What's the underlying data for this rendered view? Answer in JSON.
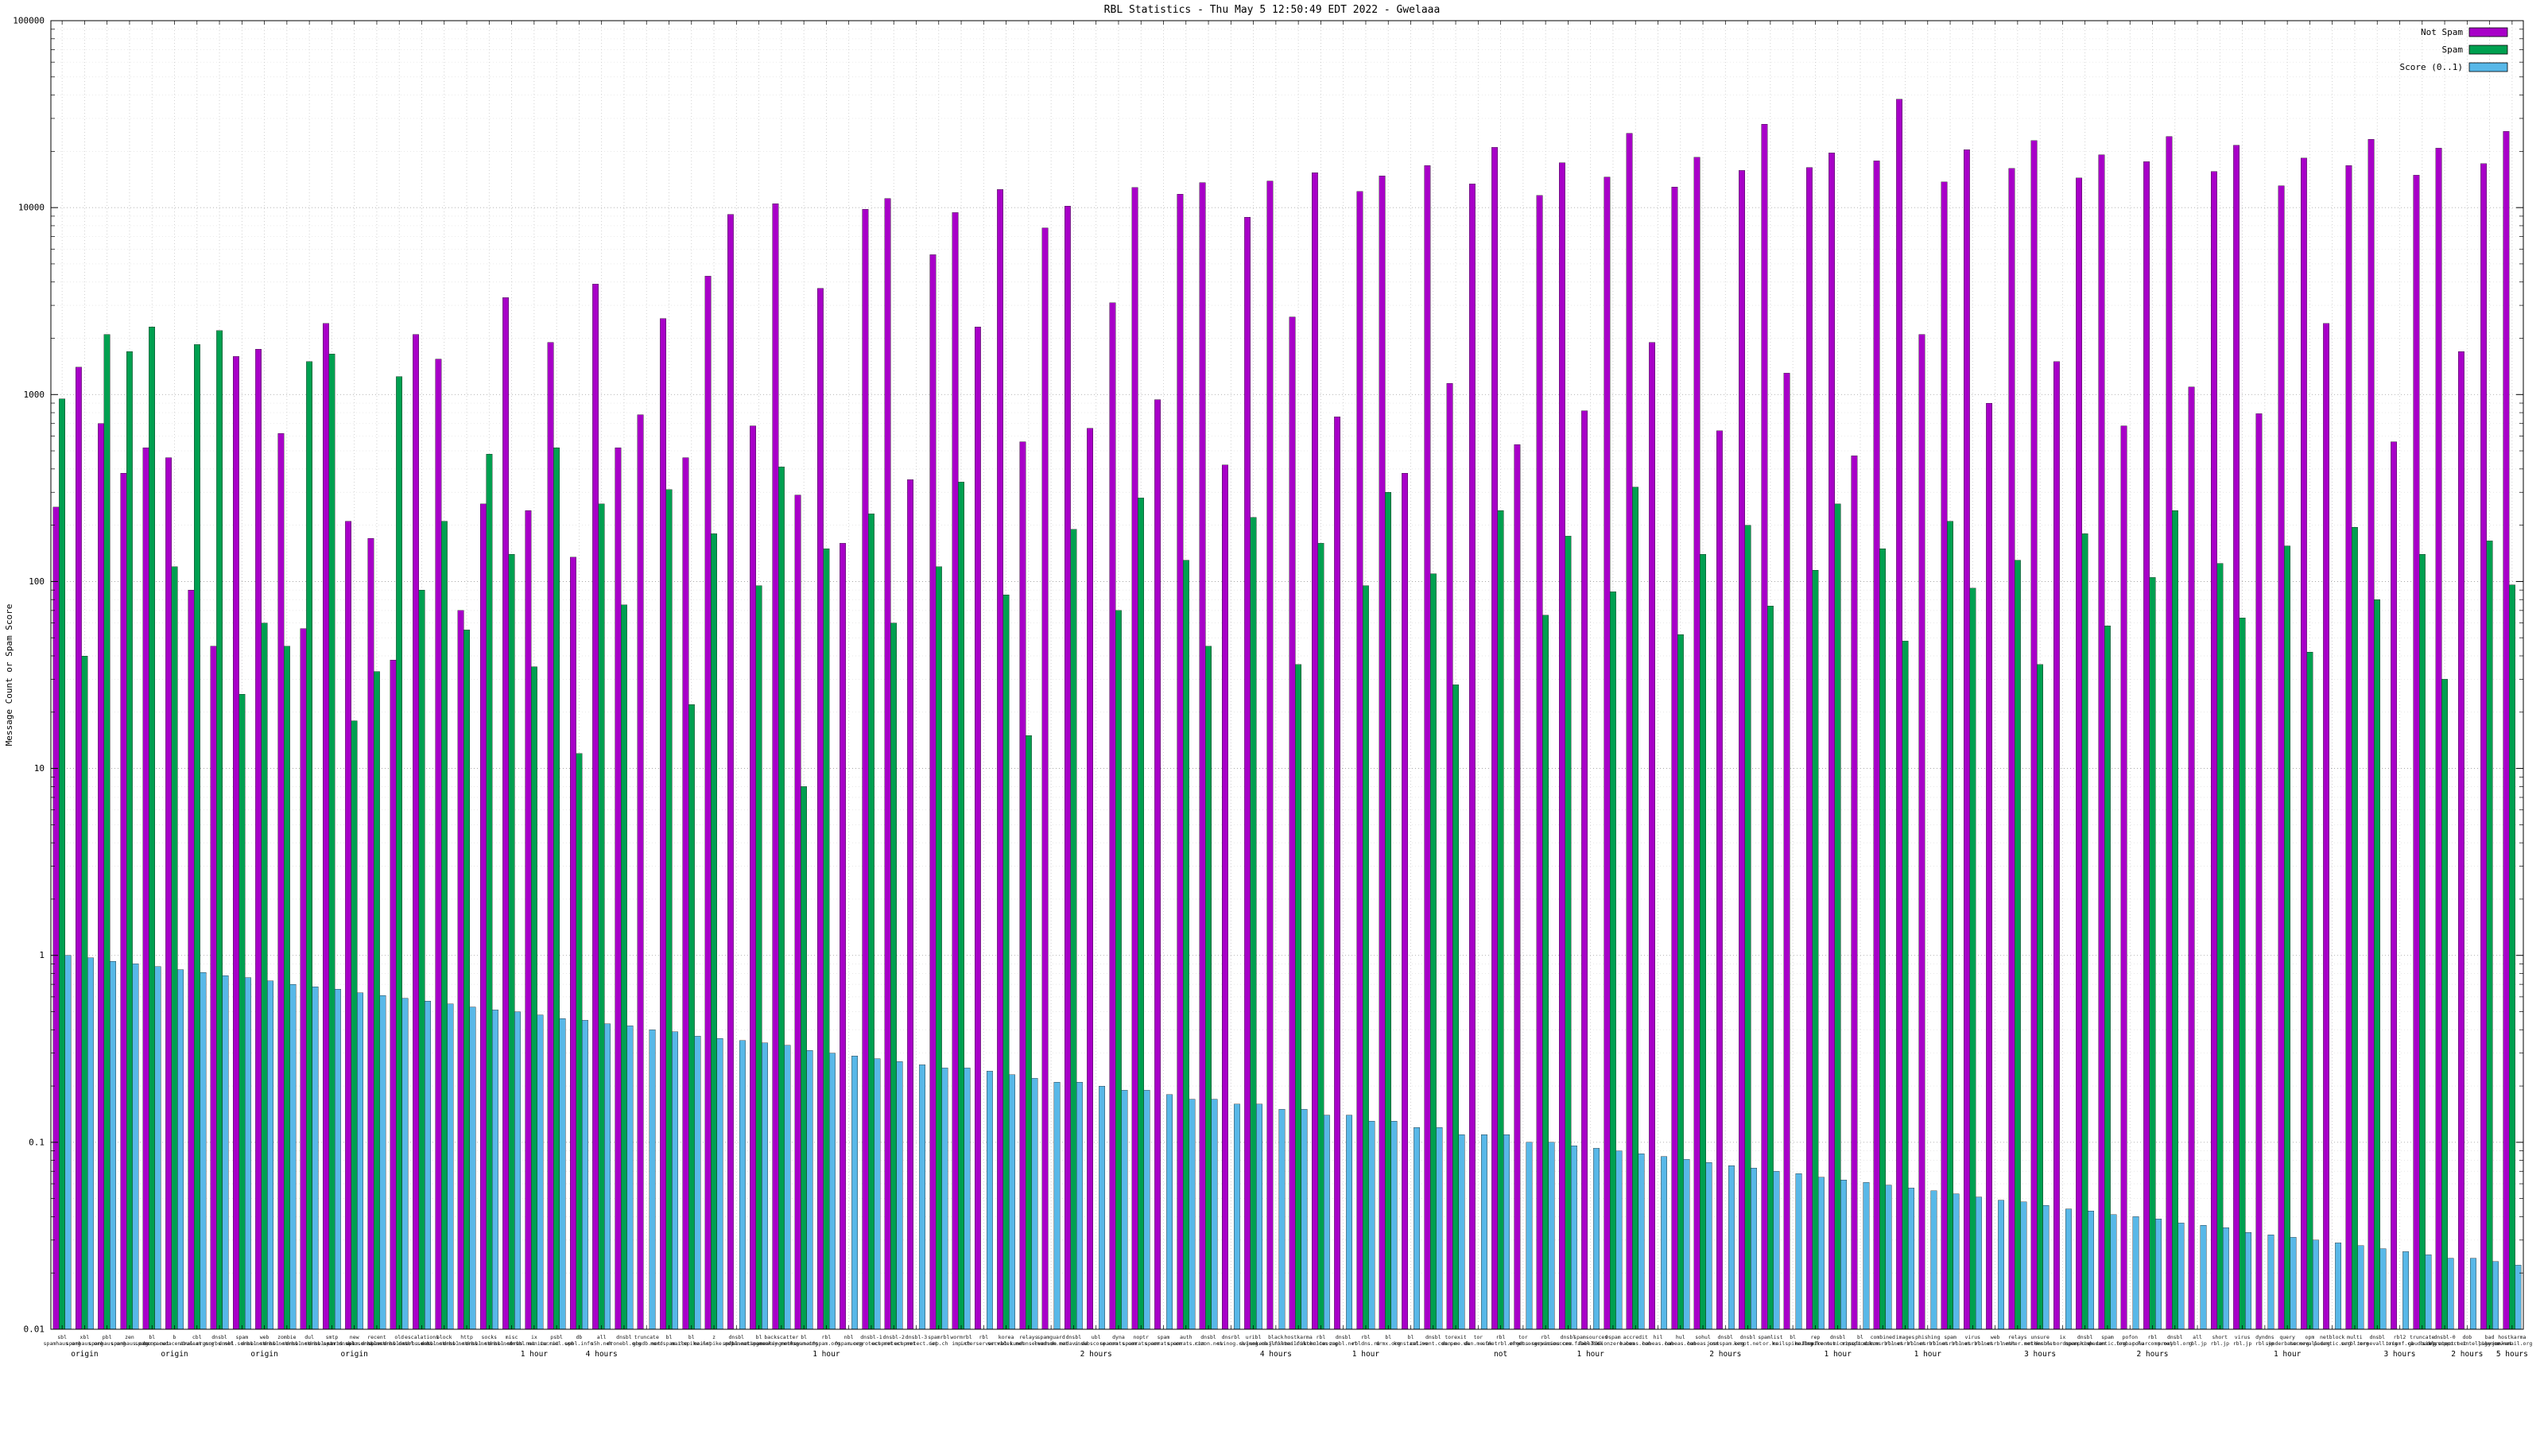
{
  "page": {
    "background": "#ffffff"
  },
  "chart_data": {
    "type": "bar",
    "title": "RBL Statistics - Thu May  5 12:50:49 EDT 2022 - Gwelaaa",
    "ylabel": "Message Count or Spam Score",
    "xlabel": "",
    "y_scale": "log",
    "ylim": [
      0.01,
      100000
    ],
    "y_ticks": [
      100000,
      10000,
      1000,
      100,
      10,
      1,
      0.1,
      0.01
    ],
    "y_tick_labels": [
      "100000",
      "10000",
      "1000",
      "100",
      "10",
      "1",
      "0.1",
      "0.01"
    ],
    "grid": true,
    "legend_position": "top-right",
    "categories": [
      "sbl.spamhaus.org",
      "xbl.spamhaus.org",
      "pbl.spamhaus.org",
      "zen.spamhaus.org",
      "bl.spamcop.net",
      "b.barracudacentral.org",
      "cbl.abuseat.org",
      "dnsbl.sorbs.net",
      "spam.dnsbl.sorbs.net",
      "web.dnsbl.sorbs.net",
      "zombie.dnsbl.sorbs.net",
      "dul.dnsbl.sorbs.net",
      "smtp.dnsbl.sorbs.net",
      "new.spam.dnsbl.sorbs.net",
      "recent.spam.dnsbl.sorbs.net",
      "old.spam.dnsbl.sorbs.net",
      "escalations.dnsbl.sorbs.net",
      "block.dnsbl.sorbs.net",
      "http.dnsbl.sorbs.net",
      "socks.dnsbl.sorbs.net",
      "misc.dnsbl.sorbs.net",
      "ix.dnsbl.manitu.net",
      "psbl.surriel.com",
      "db.wpbl.info",
      "all.s5h.net",
      "dnsbl.dronebl.org",
      "truncate.gbudb.net",
      "bl.nordspam.com",
      "bl.mailspike.net",
      "z.mailspike.net",
      "dnsbl.spfbl.net",
      "bl.spameatingmonkey.net",
      "backscatter.spameatingmonkey.net",
      "bl.0spam.org",
      "rbl.0spam.org",
      "nbl.0spam.org",
      "dnsbl-1.uceprotect.net",
      "dnsbl-2.uceprotect.net",
      "dnsbl-3.uceprotect.net",
      "spamrbl.imp.ch",
      "wormrbl.imp.ch",
      "rbl.interserver.net",
      "korea.services.net",
      "relays.bl.kundenserver.de",
      "spamguard.leadmon.net",
      "dnsbl.madavi.de",
      "ubl.unsubscore.com",
      "dyna.spamrats.com",
      "noptr.spamrats.com",
      "spam.spamrats.com",
      "auth.spamrats.com",
      "dnsbl.rizon.net",
      "dnsrbl.swinog.ch",
      "uribl.swinog.ch",
      "black.junkemailfilter.com",
      "hostkarma.junkemailfilter.com",
      "rbl.schulte.org",
      "dnsbl.zapbl.net",
      "rbl.rbldns.ru",
      "bl.drmx.org",
      "bl.konstant.no",
      "dnsbl.calivent.com.pe",
      "torexit.dan.me.uk",
      "tor.dan.me.uk",
      "rbl.efnetrbl.org",
      "tor.efnet.org",
      "rbl.dns-servicios.com",
      "dnsbl.spamsources.fabel.dk",
      "spamsources.fabel.dk",
      "0spam.fusionzero.com",
      "accredit.habeas.com",
      "hil.habeas.com",
      "hul.habeas.com",
      "sohul.habeas.com",
      "dnsbl.justspam.org",
      "dnsbl.kempt.net",
      "spamlist.or.kr",
      "bl.mailspike.org",
      "rep.mailspike.net",
      "dnsbl.forefront.microsoft.com",
      "bl.mipspace.com",
      "combined.rbl.msrbl.net",
      "images.rbl.msrbl.net",
      "phishing.rbl.msrbl.net",
      "spam.rbl.msrbl.net",
      "virus.rbl.msrbl.net",
      "web.rbl.msrbl.net",
      "relays.nether.net",
      "unsure.nether.net",
      "ix.dnsbl.nordspam.com",
      "dnsbl.openphish.com",
      "spam.pedantic.org",
      "pofon.foobar.hu",
      "rbl.polarcomm.net",
      "dnsbl.proxybl.org",
      "all.rbl.jp",
      "short.rbl.jp",
      "virus.rbl.jp",
      "dyndns.rbl.jp",
      "query.senderbase.org",
      "opm.tornevall.org",
      "netblock.pedantic.org",
      "multi.surbl.org",
      "dnsbl.tornevall.org",
      "rbl2.triumf.ca",
      "truncate.gbudb.org",
      "dnsbl-0.uceprotect.net",
      "dob.sibl.support-intelligence.net",
      "bad.psky.me",
      "hostkarma.junkemail.org"
    ],
    "category_notes": [
      {
        "index": 1,
        "text": "origin"
      },
      {
        "index": 5,
        "text": "origin"
      },
      {
        "index": 9,
        "text": "origin"
      },
      {
        "index": 13,
        "text": "origin"
      },
      {
        "index": 21,
        "text": "1 hour"
      },
      {
        "index": 24,
        "text": "4 hours"
      },
      {
        "index": 34,
        "text": "1 hour"
      },
      {
        "index": 46,
        "text": "2 hours"
      },
      {
        "index": 54,
        "text": "4 hours"
      },
      {
        "index": 58,
        "text": "1 hour"
      },
      {
        "index": 64,
        "text": "not"
      },
      {
        "index": 68,
        "text": "1 hour"
      },
      {
        "index": 74,
        "text": "2 hours"
      },
      {
        "index": 79,
        "text": "1 hour"
      },
      {
        "index": 83,
        "text": "1 hour"
      },
      {
        "index": 88,
        "text": "3 hours"
      },
      {
        "index": 93,
        "text": "2 hours"
      },
      {
        "index": 99,
        "text": "1 hour"
      },
      {
        "index": 104,
        "text": "3 hours"
      },
      {
        "index": 107,
        "text": "2 hours"
      },
      {
        "index": 109,
        "text": "5 hours"
      }
    ],
    "series": [
      {
        "name": "Not Spam",
        "color": "#a800c8",
        "values": [
          250,
          1400,
          700,
          380,
          520,
          460,
          90,
          45,
          1600,
          1750,
          620,
          56,
          2400,
          210,
          170,
          38,
          2100,
          1550,
          70,
          260,
          3300,
          240,
          1900,
          135,
          3900,
          520,
          780,
          2550,
          460,
          4300,
          9200,
          680,
          10500,
          290,
          3700,
          160,
          9800,
          11200,
          350,
          5600,
          9400,
          2300,
          12500,
          560,
          7800,
          10200,
          660,
          3100,
          12800,
          940,
          11800,
          13600,
          420,
          8900,
          13900,
          2600,
          15400,
          760,
          12200,
          14800,
          380,
          16800,
          1150,
          13400,
          21000,
          540,
          11600,
          17400,
          820,
          14600,
          25000,
          1900,
          12900,
          18600,
          640,
          15800,
          28000,
          1300,
          16400,
          19600,
          470,
          17800,
          38000,
          2100,
          13700,
          20400,
          900,
          16200,
          22800,
          1500,
          14400,
          19200,
          680,
          17600,
          24000,
          1100,
          15600,
          21600,
          790,
          13100,
          18400,
          2400,
          16800,
          23200,
          560,
          14900,
          20800,
          1700,
          17200,
          25600
        ]
      },
      {
        "name": "Spam",
        "color": "#00a050",
        "values": [
          950,
          40,
          2100,
          1700,
          2300,
          120,
          1850,
          2200,
          25,
          60,
          45,
          1500,
          1650,
          18,
          33,
          1250,
          90,
          210,
          55,
          480,
          140,
          35,
          520,
          12,
          260,
          75,
          0,
          310,
          22,
          180,
          0,
          95,
          410,
          8,
          150,
          0,
          230,
          60,
          0,
          120,
          340,
          0,
          85,
          15,
          0,
          190,
          0,
          70,
          280,
          0,
          130,
          45,
          0,
          220,
          0,
          36,
          160,
          0,
          95,
          300,
          0,
          110,
          28,
          0,
          240,
          0,
          66,
          175,
          0,
          88,
          320,
          0,
          52,
          140,
          0,
          200,
          74,
          0,
          115,
          260,
          0,
          150,
          48,
          0,
          210,
          92,
          0,
          130,
          36,
          0,
          180,
          58,
          0,
          105,
          240,
          0,
          125,
          64,
          0,
          155,
          42,
          0,
          195,
          80,
          0,
          140,
          30,
          0,
          165,
          96
        ]
      },
      {
        "name": "Score (0..1)",
        "color": "#58b8e8",
        "values": [
          1.0,
          0.97,
          0.93,
          0.9,
          0.87,
          0.84,
          0.81,
          0.78,
          0.76,
          0.73,
          0.7,
          0.68,
          0.66,
          0.63,
          0.61,
          0.59,
          0.57,
          0.55,
          0.53,
          0.51,
          0.5,
          0.48,
          0.46,
          0.45,
          0.43,
          0.42,
          0.4,
          0.39,
          0.37,
          0.36,
          0.35,
          0.34,
          0.33,
          0.31,
          0.3,
          0.29,
          0.28,
          0.27,
          0.26,
          0.25,
          0.25,
          0.24,
          0.23,
          0.22,
          0.21,
          0.21,
          0.2,
          0.19,
          0.19,
          0.18,
          0.17,
          0.17,
          0.16,
          0.16,
          0.15,
          0.15,
          0.14,
          0.14,
          0.13,
          0.13,
          0.12,
          0.12,
          0.11,
          0.11,
          0.11,
          0.1,
          0.1,
          0.096,
          0.093,
          0.09,
          0.087,
          0.084,
          0.081,
          0.078,
          0.075,
          0.073,
          0.07,
          0.068,
          0.065,
          0.063,
          0.061,
          0.059,
          0.057,
          0.055,
          0.053,
          0.051,
          0.049,
          0.048,
          0.046,
          0.044,
          0.043,
          0.041,
          0.04,
          0.039,
          0.037,
          0.036,
          0.035,
          0.033,
          0.032,
          0.031,
          0.03,
          0.029,
          0.028,
          0.027,
          0.026,
          0.025,
          0.024,
          0.024,
          0.023,
          0.022
        ]
      }
    ]
  }
}
